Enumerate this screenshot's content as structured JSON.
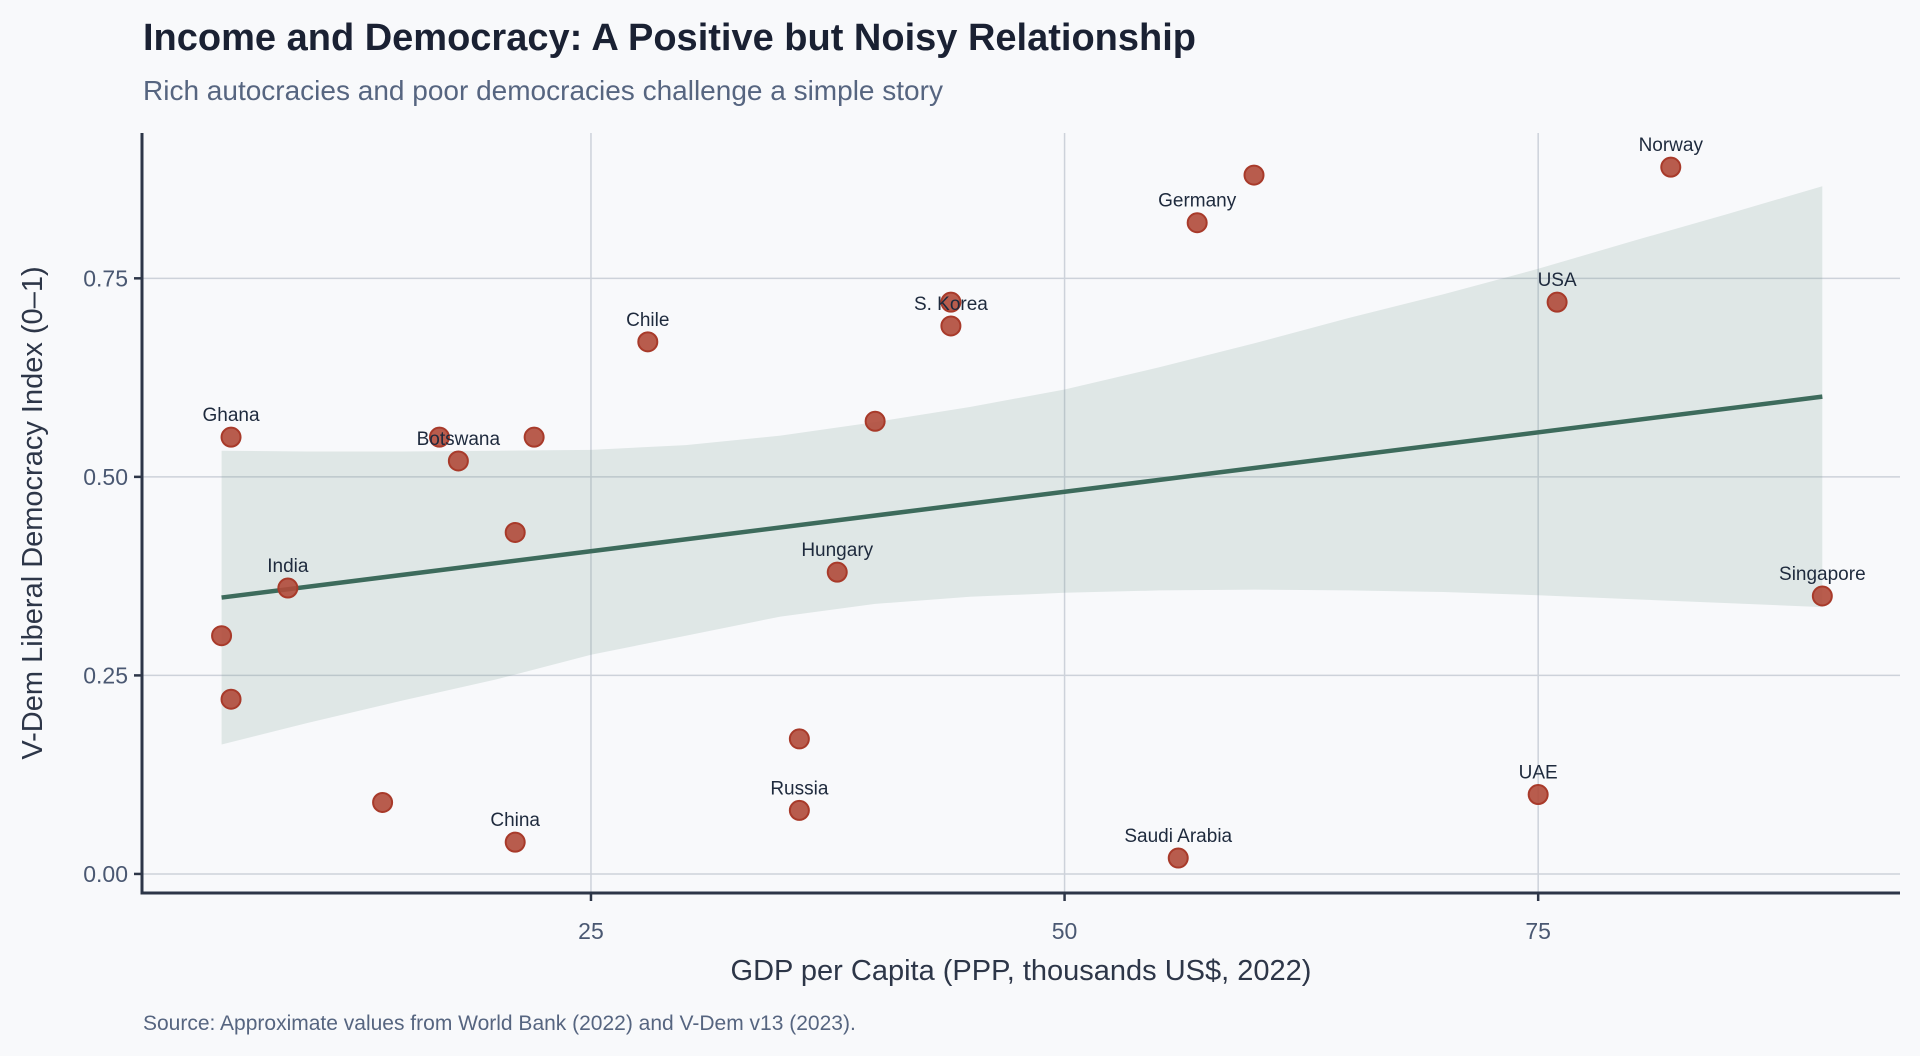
{
  "chart_data": {
    "type": "scatter",
    "title": "Income and Democracy: A Positive but Noisy Relationship",
    "subtitle": "Rich autocracies and poor democracies challenge a simple story",
    "xlabel": "GDP per Capita (PPP, thousands US$, 2022)",
    "ylabel": "V-Dem Liberal Democracy Index (0–1)",
    "source": "Source: Approximate values from World Bank (2022) and V-Dem v13 (2023).",
    "xlim": [
      1.3,
      94.1
    ],
    "ylim": [
      -0.024,
      0.933
    ],
    "x_ticks": [
      25,
      50,
      75
    ],
    "x_tick_labels": [
      "25",
      "50",
      "75"
    ],
    "y_ticks": [
      0,
      0.25,
      0.5,
      0.75
    ],
    "y_tick_labels": [
      "0.00",
      "0.25",
      "0.50",
      "0.75"
    ],
    "grid": true,
    "colors": {
      "points": "#b04a3a",
      "fit_line": "#3d6b5c",
      "ci_band": "#6f9488"
    },
    "points": [
      {
        "label": "Ghana",
        "x": 6.0,
        "y": 0.55
      },
      {
        "label": "",
        "x": 17.0,
        "y": 0.55
      },
      {
        "label": "Botswana",
        "x": 18.0,
        "y": 0.52
      },
      {
        "label": "",
        "x": 22.0,
        "y": 0.55
      },
      {
        "label": "",
        "x": 21.0,
        "y": 0.43
      },
      {
        "label": "India",
        "x": 9.0,
        "y": 0.36
      },
      {
        "label": "",
        "x": 5.5,
        "y": 0.3
      },
      {
        "label": "",
        "x": 6.0,
        "y": 0.22
      },
      {
        "label": "",
        "x": 14.0,
        "y": 0.09
      },
      {
        "label": "China",
        "x": 21.0,
        "y": 0.04
      },
      {
        "label": "Chile",
        "x": 28.0,
        "y": 0.67
      },
      {
        "label": "",
        "x": 44.0,
        "y": 0.72
      },
      {
        "label": "S. Korea",
        "x": 44.0,
        "y": 0.69
      },
      {
        "label": "",
        "x": 40.0,
        "y": 0.57
      },
      {
        "label": "Hungary",
        "x": 38.0,
        "y": 0.38
      },
      {
        "label": "",
        "x": 36.0,
        "y": 0.17
      },
      {
        "label": "Russia",
        "x": 36.0,
        "y": 0.08
      },
      {
        "label": "Saudi Arabia",
        "x": 56.0,
        "y": 0.02
      },
      {
        "label": "",
        "x": 60.0,
        "y": 0.88
      },
      {
        "label": "Germany",
        "x": 57.0,
        "y": 0.82
      },
      {
        "label": "Norway",
        "x": 82.0,
        "y": 0.89
      },
      {
        "label": "USA",
        "x": 76.0,
        "y": 0.72
      },
      {
        "label": "UAE",
        "x": 75.0,
        "y": 0.1
      },
      {
        "label": "Singapore",
        "x": 90.0,
        "y": 0.35
      }
    ],
    "fit": {
      "type": "linear",
      "x_range": [
        5.5,
        90.0
      ],
      "y_at_range": [
        0.348,
        0.601
      ]
    },
    "ci_band": {
      "x": [
        5.5,
        10,
        15,
        20,
        25,
        30,
        35,
        40,
        45,
        50,
        55,
        60,
        65,
        70,
        75,
        80,
        85,
        90
      ],
      "upper": [
        0.533,
        0.532,
        0.532,
        0.533,
        0.534,
        0.54,
        0.552,
        0.569,
        0.588,
        0.61,
        0.638,
        0.668,
        0.7,
        0.73,
        0.762,
        0.797,
        0.831,
        0.866
      ],
      "lower": [
        0.163,
        0.19,
        0.218,
        0.245,
        0.276,
        0.3,
        0.324,
        0.34,
        0.349,
        0.354,
        0.357,
        0.358,
        0.357,
        0.355,
        0.351,
        0.346,
        0.341,
        0.336
      ]
    }
  }
}
